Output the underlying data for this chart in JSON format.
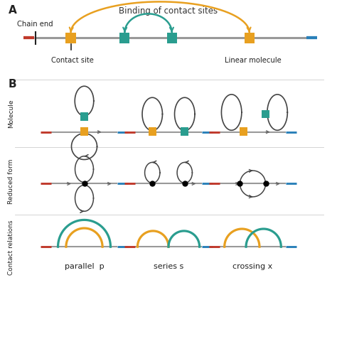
{
  "fig_width": 4.74,
  "fig_height": 4.85,
  "dpi": 100,
  "bg_color": "#ffffff",
  "orange": "#E8A020",
  "teal": "#2A9D8F",
  "red_color": "#C0392B",
  "blue_color": "#2980B9",
  "dark": "#222222",
  "line_color": "#444444",
  "label_A": "A",
  "label_B": "B",
  "title_binding": "Binding of contact sites",
  "label_chain_end": "Chain end",
  "label_contact_site": "Contact site",
  "label_linear_molecule": "Linear molecule",
  "label_molecule": "Molecule",
  "label_reduced": "Reduced form",
  "label_contact_rel": "Contact relations",
  "label_parallel": "parallel  p",
  "label_series": "series s",
  "label_crossing": "crossing x"
}
